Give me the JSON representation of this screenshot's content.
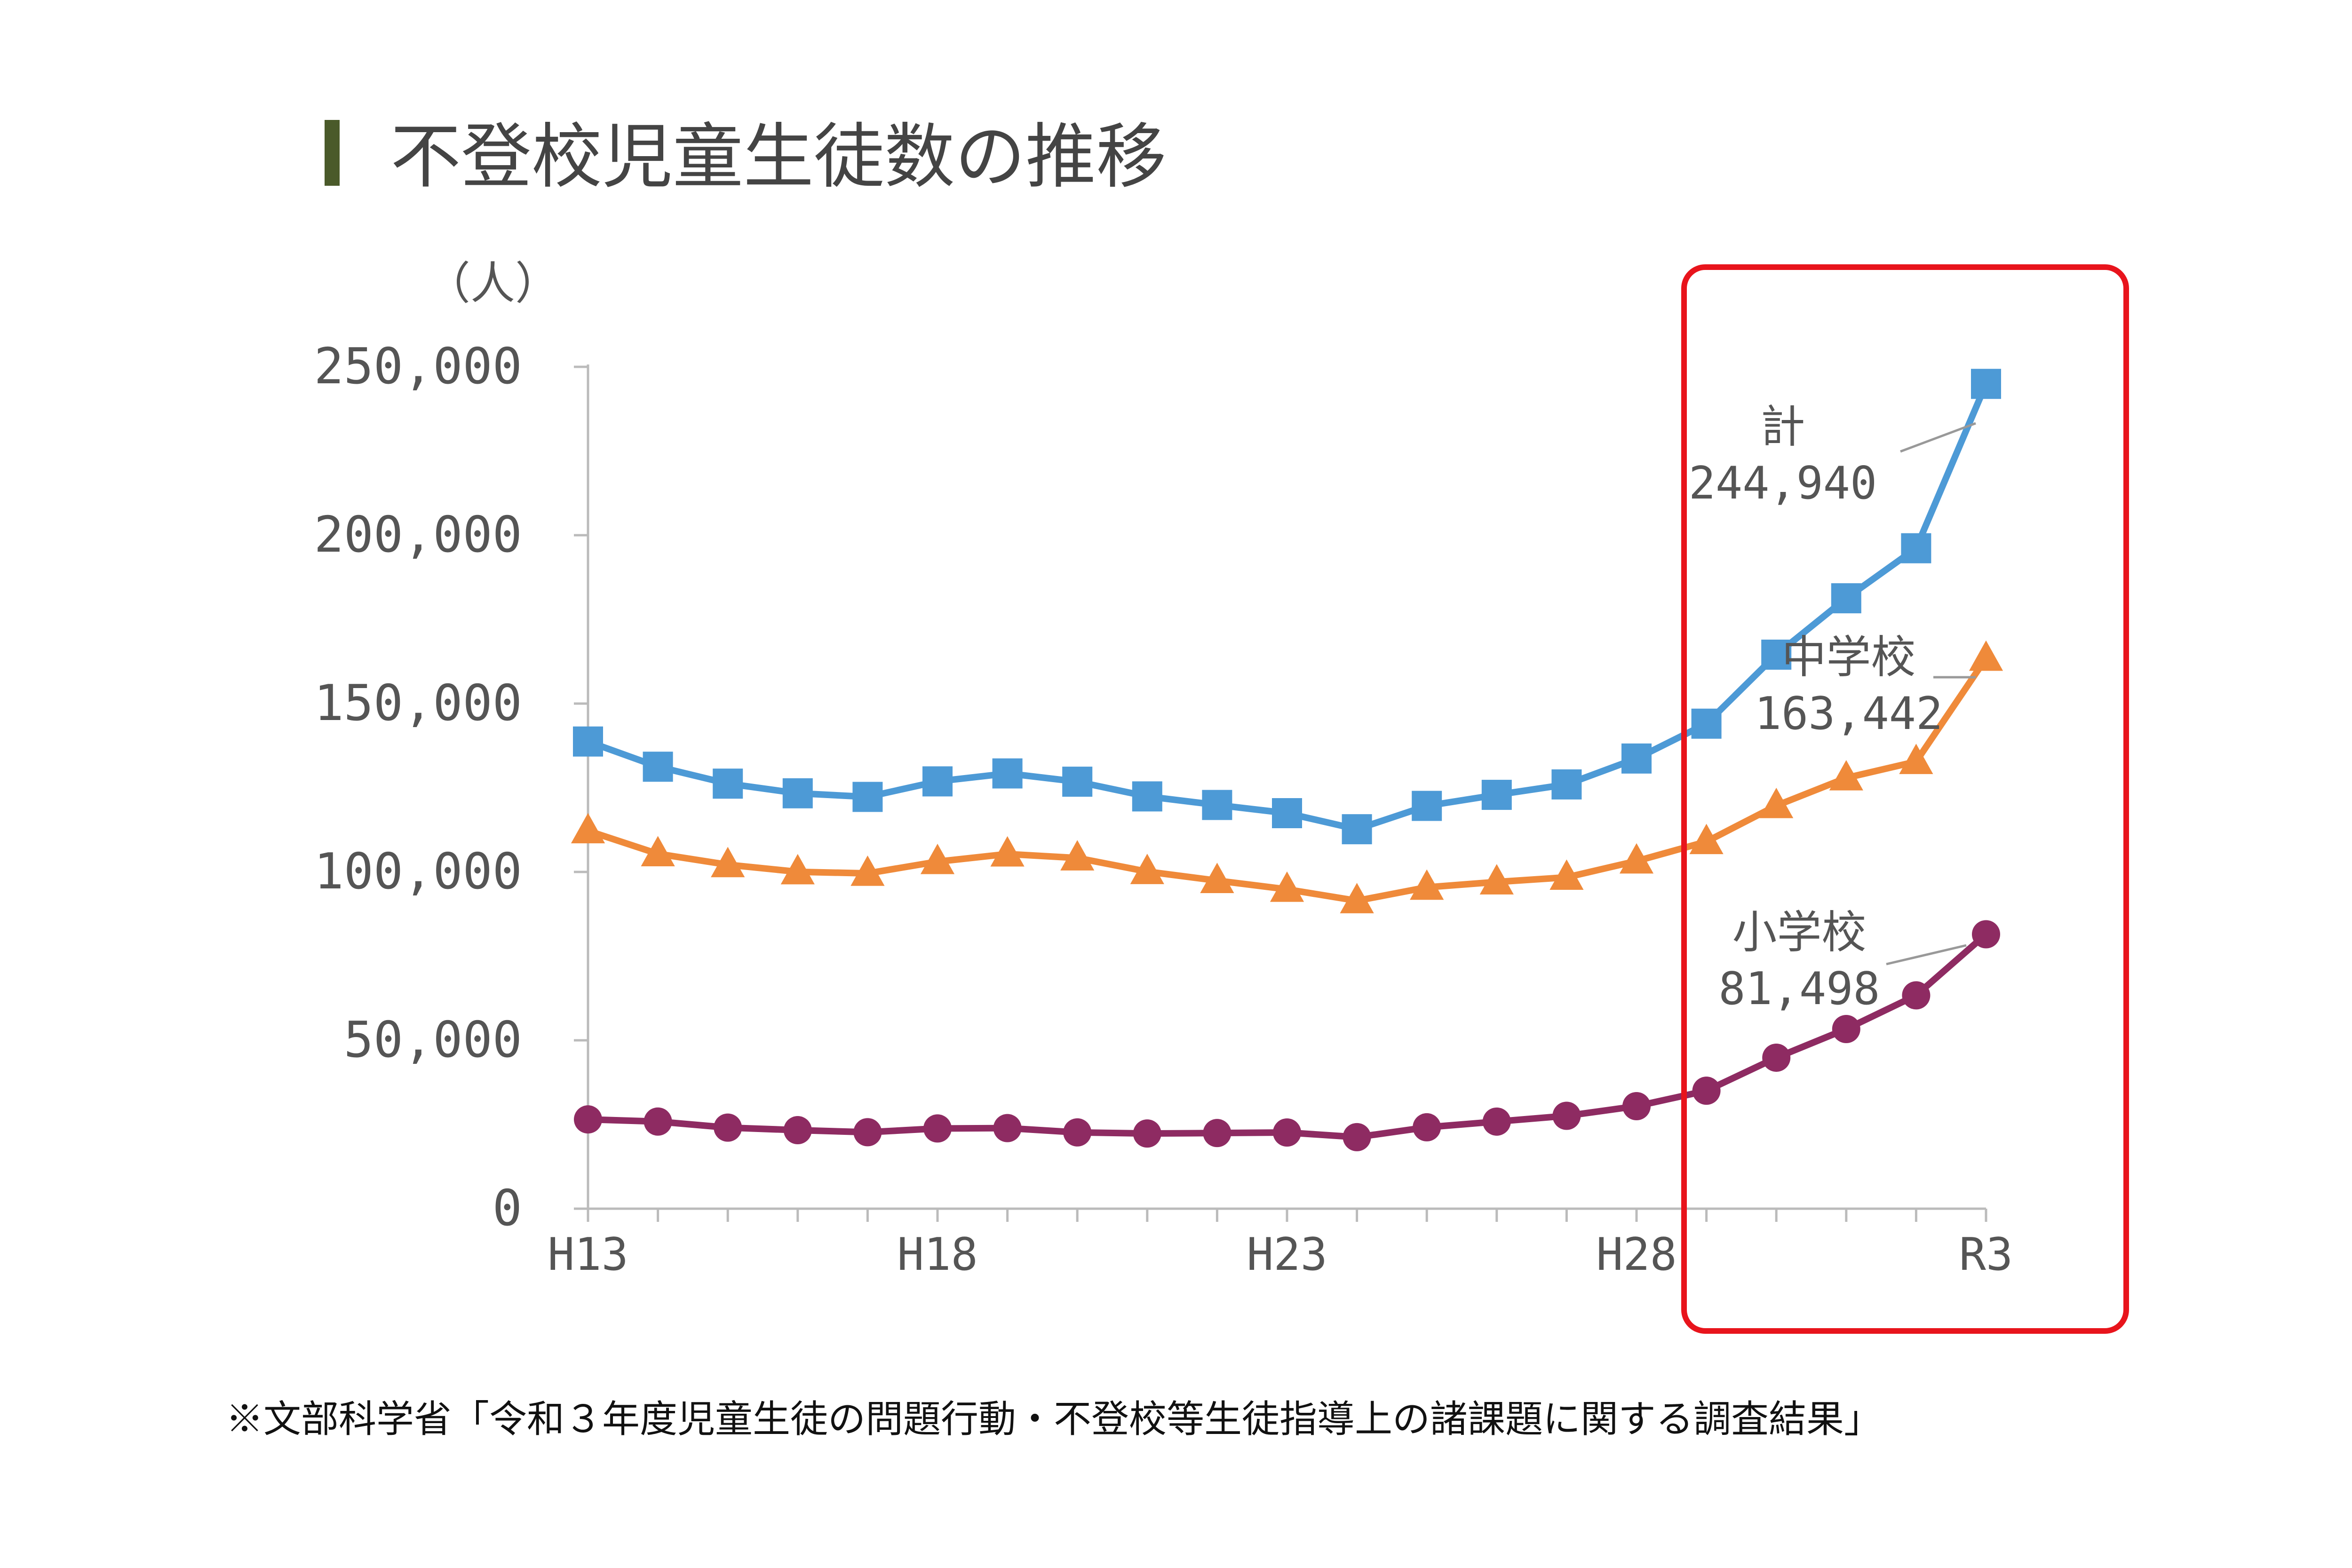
{
  "chart_data": {
    "type": "line",
    "title": "不登校児童生徒数の推移",
    "unit_label": "（人）",
    "ylim": [
      0,
      250000
    ],
    "y_ticks": [
      0,
      50000,
      100000,
      150000,
      200000,
      250000
    ],
    "y_tick_labels": [
      "0",
      "50,000",
      "100,000",
      "150,000",
      "200,000",
      "250,000"
    ],
    "x": [
      "H13",
      "H14",
      "H15",
      "H16",
      "H17",
      "H18",
      "H19",
      "H20",
      "H21",
      "H22",
      "H23",
      "H24",
      "H25",
      "H26",
      "H27",
      "H28",
      "H29",
      "H30",
      "R1",
      "R2",
      "R3"
    ],
    "x_tick_labels": [
      "H13",
      "",
      "",
      "",
      "",
      "H18",
      "",
      "",
      "",
      "",
      "H23",
      "",
      "",
      "",
      "",
      "H28",
      "",
      "",
      "",
      "",
      "R3"
    ],
    "series": [
      {
        "name": "計",
        "marker": "square",
        "color": "#4d9ad6",
        "values": [
          138733,
          131252,
          126226,
          123358,
          122287,
          126894,
          129255,
          126805,
          122432,
          119891,
          117458,
          112689,
          119617,
          122897,
          125991,
          133683,
          144031,
          164528,
          181272,
          196127,
          244940
        ]
      },
      {
        "name": "中学校",
        "marker": "triangle",
        "color": "#ef8a3a",
        "values": [
          112211,
          105383,
          102149,
          100040,
          99578,
          103069,
          105328,
          104153,
          100105,
          97428,
          94836,
          91446,
          95442,
          97033,
          98408,
          103235,
          108999,
          119687,
          127922,
          132777,
          163442
        ]
      },
      {
        "name": "小学校",
        "marker": "circle",
        "color": "#8e2b62",
        "values": [
          26511,
          25869,
          24077,
          23318,
          22709,
          23825,
          23927,
          22652,
          22327,
          22463,
          22622,
          21243,
          24175,
          25864,
          27583,
          30448,
          35032,
          44841,
          53350,
          63350,
          81498
        ]
      }
    ],
    "annotations": [
      {
        "label": "計",
        "value_text": "244,940"
      },
      {
        "label": "中学校",
        "value_text": "163,442"
      },
      {
        "label": "小学校",
        "value_text": "81,498"
      }
    ],
    "highlight_color": "#e8141c"
  },
  "source_note": "※文部科学省「令和３年度児童生徒の問題行動・不登校等生徒指導上の諸課題に関する調査結果」",
  "colors": {
    "title_bar": "#4a5a2a",
    "axis": "#bbbbbb",
    "leader": "#999999"
  }
}
